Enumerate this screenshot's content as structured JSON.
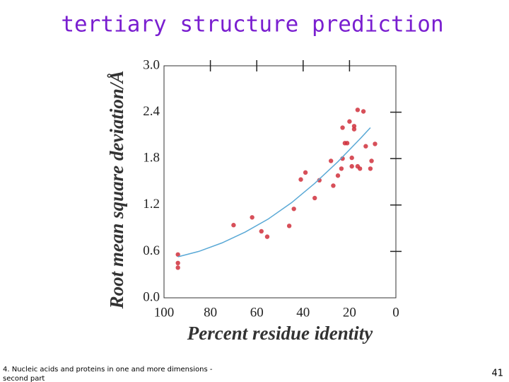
{
  "chart_data": {
    "type": "scatter",
    "title": "tertiary structure prediction",
    "x_label": "Percent residue identity",
    "y_label": "Root mean square deviation/Å",
    "xlim": [
      100,
      0
    ],
    "xticks": [
      100,
      80,
      60,
      40,
      20,
      0
    ],
    "ylim": [
      0,
      3
    ],
    "yticks": [
      {
        "value": 0,
        "label": "0.0"
      },
      0.6,
      1.2,
      1.8,
      2.4,
      {
        "value": 3,
        "label": "3.0"
      }
    ],
    "series": [
      {
        "type": "scatter",
        "color": "#d0303c",
        "x": [
          94,
          94,
          94,
          70,
          62,
          58,
          55.5,
          46,
          44,
          41,
          39,
          35,
          33,
          28,
          27,
          25,
          23.5,
          23,
          23,
          22,
          21,
          20,
          19,
          19,
          18,
          18,
          16.5,
          16.5,
          15.5,
          14,
          13,
          11,
          10.5,
          9
        ],
        "values": [
          0.56,
          0.45,
          0.39,
          0.94,
          1.04,
          0.86,
          0.79,
          0.93,
          1.15,
          1.53,
          1.62,
          1.29,
          1.52,
          1.77,
          1.45,
          1.58,
          1.67,
          2.2,
          1.8,
          2.0,
          2.0,
          2.28,
          1.7,
          1.81,
          2.22,
          2.18,
          2.43,
          1.7,
          1.67,
          2.41,
          1.96,
          1.67,
          1.77,
          1.99
        ]
      },
      {
        "type": "line",
        "color": "#5aa9d6",
        "x": [
          94,
          85,
          75,
          65,
          55,
          45,
          35,
          25,
          15,
          11
        ],
        "values": [
          0.53,
          0.6,
          0.71,
          0.85,
          1.02,
          1.23,
          1.48,
          1.76,
          2.07,
          2.2
        ]
      }
    ]
  },
  "footer": {
    "line1": "4. Nucleic acids and proteins in one and more dimensions -",
    "line2": "second part",
    "page": "41"
  }
}
